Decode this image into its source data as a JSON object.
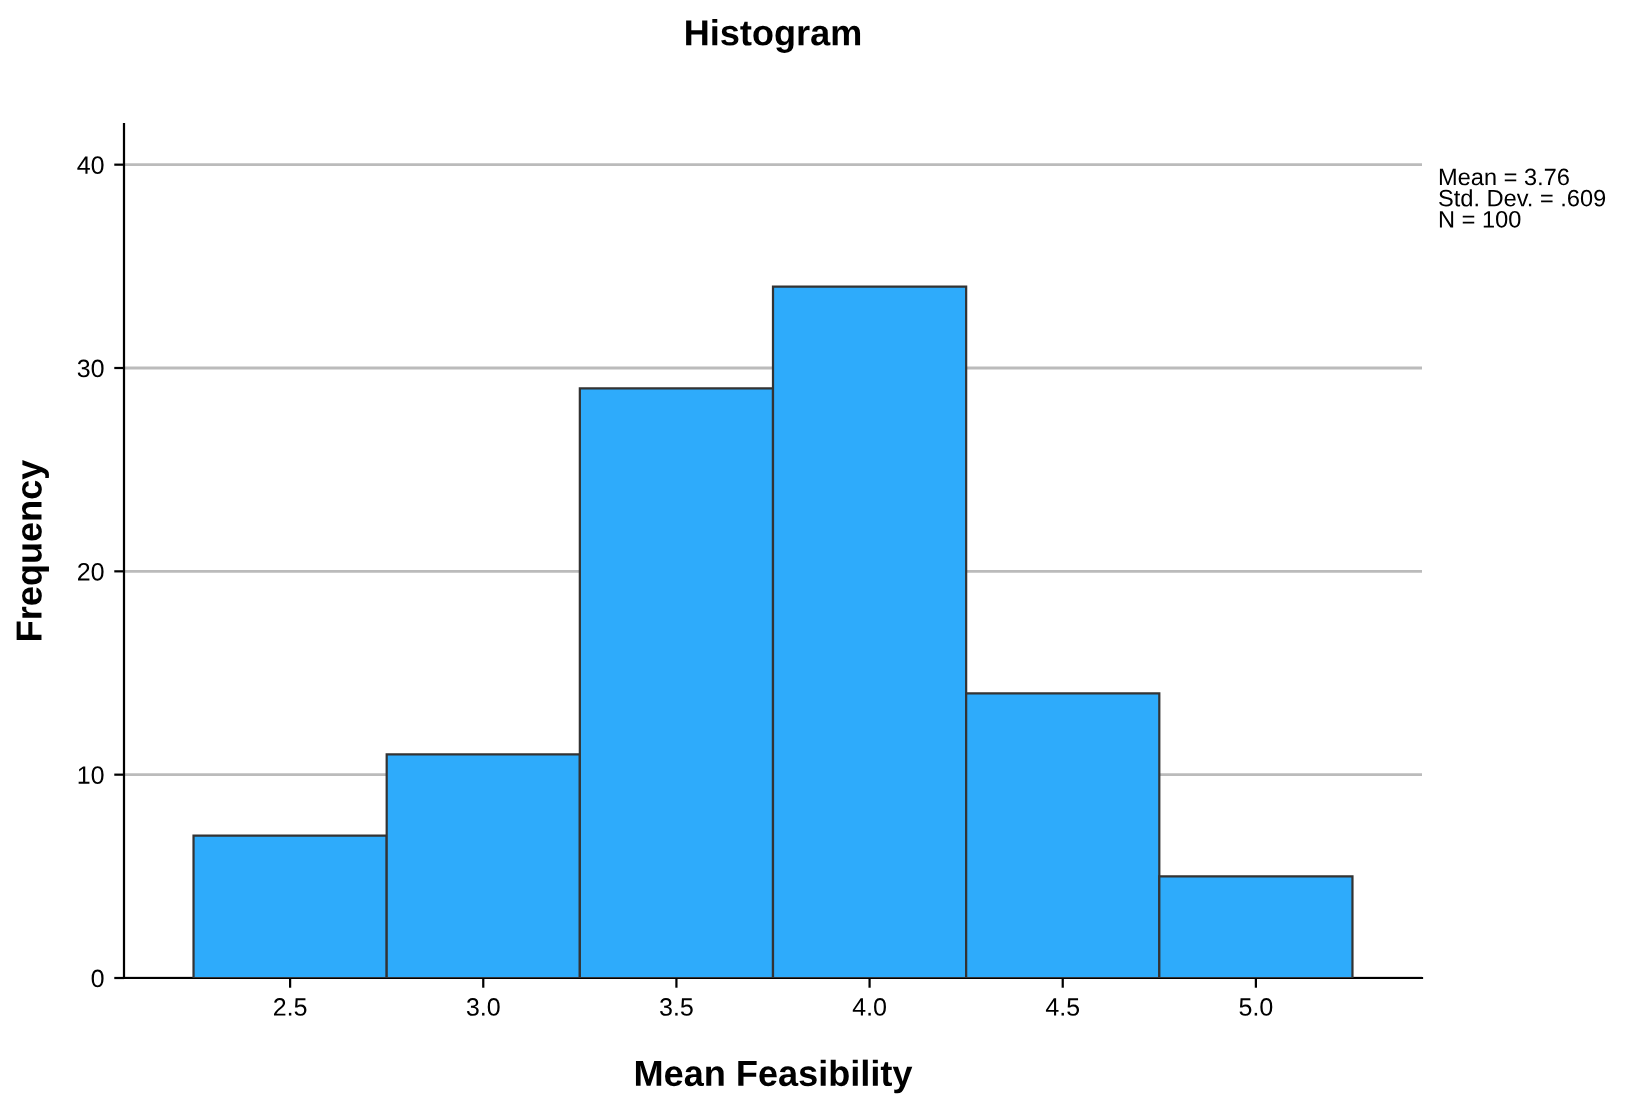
{
  "chart_data": {
    "type": "histogram",
    "title": "Histogram",
    "xlabel": "Mean Feasibility",
    "ylabel": "Frequency",
    "bins": [
      2.25,
      2.75,
      3.25,
      3.75,
      4.25,
      4.75,
      5.25
    ],
    "values": [
      7,
      11,
      29,
      34,
      14,
      5
    ],
    "color": "#2eabfb",
    "xlim": [
      2.07,
      5.43
    ],
    "xticks": [
      2.5,
      {
        "value": 3,
        "label": "3.0"
      },
      3.5,
      {
        "value": 4,
        "label": "4.0"
      },
      4.5,
      {
        "value": 5,
        "label": "5.0"
      }
    ],
    "ylim": [
      0,
      42
    ],
    "yticks": [
      0,
      10,
      20,
      30,
      40
    ],
    "grid": "y",
    "annotations": [
      "Mean = 3.76\nStd. Dev. = .609\nN = 100"
    ]
  }
}
